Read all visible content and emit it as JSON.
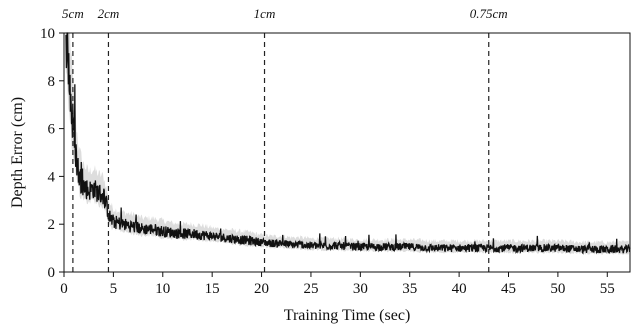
{
  "chart_data": {
    "type": "line",
    "title": "",
    "xlabel": "Training Time (sec)",
    "ylabel": "Depth Error (cm)",
    "xlim": [
      0,
      57.3
    ],
    "ylim": [
      0,
      10
    ],
    "xticks": [
      0,
      5,
      10,
      15,
      20,
      25,
      30,
      35,
      40,
      45,
      50,
      55
    ],
    "yticks": [
      0,
      2,
      4,
      6,
      8,
      10
    ],
    "grid": false,
    "legend": "none",
    "series": [
      {
        "name": "",
        "color": "#111111",
        "band_color": "#d9d9d9",
        "x": [
          0.2,
          0.5,
          0.8,
          1.0,
          1.3,
          1.6,
          2.0,
          2.5,
          3.0,
          3.5,
          4.0,
          4.3,
          4.6,
          5.0,
          6.0,
          7.0,
          8.0,
          9.0,
          10.0,
          11.0,
          12.0,
          13.0,
          14.0,
          15.0,
          16.0,
          17.0,
          18.0,
          19.0,
          20.0,
          21.0,
          22.0,
          23.0,
          24.0,
          25.0,
          27.5,
          30.0,
          32.5,
          35.0,
          37.5,
          40.0,
          42.5,
          45.0,
          47.5,
          50.0,
          52.5,
          55.0,
          57.3
        ],
        "y": [
          10.0,
          8.5,
          6.5,
          5.8,
          4.6,
          3.9,
          3.6,
          3.4,
          3.5,
          3.3,
          3.2,
          2.8,
          2.3,
          2.1,
          2.0,
          1.9,
          1.8,
          1.8,
          1.7,
          1.65,
          1.6,
          1.6,
          1.55,
          1.5,
          1.45,
          1.4,
          1.35,
          1.3,
          1.25,
          1.2,
          1.2,
          1.15,
          1.15,
          1.1,
          1.1,
          1.05,
          1.05,
          1.05,
          1.0,
          1.0,
          1.0,
          1.0,
          1.0,
          1.0,
          0.95,
          0.95,
          0.95
        ],
        "band": [
          2.5,
          2.5,
          2.0,
          1.6,
          1.3,
          1.1,
          0.9,
          0.8,
          0.8,
          0.8,
          0.8,
          0.7,
          0.6,
          0.55,
          0.5,
          0.5,
          0.45,
          0.45,
          0.45,
          0.4,
          0.4,
          0.4,
          0.4,
          0.35,
          0.35,
          0.35,
          0.35,
          0.35,
          0.3,
          0.3,
          0.3,
          0.3,
          0.3,
          0.3,
          0.3,
          0.3,
          0.3,
          0.3,
          0.3,
          0.3,
          0.3,
          0.3,
          0.3,
          0.3,
          0.3,
          0.3,
          0.3
        ]
      }
    ],
    "vlines": [
      {
        "x": 0.9,
        "label": "5cm"
      },
      {
        "x": 4.5,
        "label": "2cm"
      },
      {
        "x": 20.3,
        "label": "1cm"
      },
      {
        "x": 43.0,
        "label": "0.75cm"
      }
    ]
  }
}
